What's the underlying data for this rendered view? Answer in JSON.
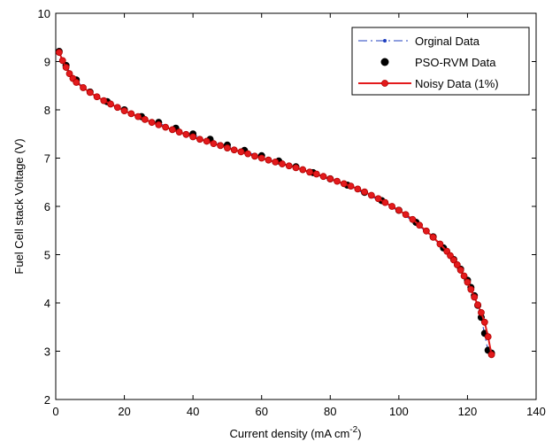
{
  "chart_data": {
    "type": "line",
    "xlabel": "Current density (mA cm",
    "xlabel_sup": "-2",
    "xlabel_close": ")",
    "ylabel": "Fuel Cell stack Voltage (V)",
    "xlim": [
      0,
      140
    ],
    "ylim": [
      2,
      10
    ],
    "xticks": [
      "0",
      "20",
      "40",
      "60",
      "80",
      "100",
      "120",
      "140"
    ],
    "yticks": [
      "2",
      "3",
      "4",
      "5",
      "6",
      "7",
      "8",
      "9",
      "10"
    ],
    "grid": false,
    "legend_position": "top-right",
    "series": [
      {
        "name": "Orginal Data",
        "color": "#1f3fbf",
        "style": "dash-dot-marker",
        "x": [
          1,
          3,
          6,
          10,
          15,
          20,
          25,
          30,
          35,
          40,
          45,
          50,
          55,
          60,
          65,
          70,
          75,
          80,
          85,
          90,
          95,
          100,
          105,
          110,
          113,
          116,
          118,
          120,
          121,
          122,
          123,
          124,
          125,
          126,
          127
        ],
        "y": [
          9.2,
          8.9,
          8.6,
          8.35,
          8.15,
          7.98,
          7.84,
          7.72,
          7.6,
          7.48,
          7.37,
          7.25,
          7.14,
          7.03,
          6.92,
          6.8,
          6.68,
          6.55,
          6.42,
          6.27,
          6.1,
          5.9,
          5.65,
          5.35,
          5.12,
          4.88,
          4.68,
          4.45,
          4.3,
          4.13,
          3.93,
          3.68,
          3.35,
          3.0,
          2.95
        ]
      },
      {
        "name": "PSO-RVM Data",
        "color": "#000000",
        "style": "marker",
        "x": [
          1,
          3,
          6,
          10,
          15,
          20,
          25,
          30,
          35,
          40,
          45,
          50,
          55,
          60,
          65,
          70,
          75,
          80,
          85,
          90,
          95,
          100,
          105,
          110,
          113,
          116,
          118,
          120,
          121,
          122,
          123,
          124,
          125,
          126,
          127
        ],
        "y": [
          9.21,
          8.92,
          8.62,
          8.37,
          8.17,
          8.0,
          7.86,
          7.74,
          7.62,
          7.5,
          7.39,
          7.27,
          7.16,
          7.05,
          6.94,
          6.82,
          6.7,
          6.57,
          6.44,
          6.29,
          6.12,
          5.92,
          5.67,
          5.37,
          5.14,
          4.9,
          4.7,
          4.47,
          4.32,
          4.15,
          3.95,
          3.7,
          3.37,
          3.02,
          2.96
        ]
      },
      {
        "name": "Noisy Data (1%)",
        "color": "#e31a1c",
        "style": "line-marker",
        "x": [
          1,
          2,
          3,
          4,
          5,
          6,
          8,
          10,
          12,
          14,
          16,
          18,
          20,
          22,
          24,
          26,
          28,
          30,
          32,
          34,
          36,
          38,
          40,
          42,
          44,
          46,
          48,
          50,
          52,
          54,
          56,
          58,
          60,
          62,
          64,
          66,
          68,
          70,
          72,
          74,
          76,
          78,
          80,
          82,
          84,
          86,
          88,
          90,
          92,
          94,
          96,
          98,
          100,
          102,
          104,
          106,
          108,
          110,
          112,
          114,
          115,
          116,
          117,
          118,
          119,
          120,
          121,
          122,
          123,
          124,
          125,
          126,
          127
        ],
        "y": [
          9.19,
          9.02,
          8.88,
          8.75,
          8.65,
          8.57,
          8.46,
          8.36,
          8.27,
          8.19,
          8.12,
          8.05,
          7.98,
          7.92,
          7.86,
          7.8,
          7.74,
          7.69,
          7.64,
          7.59,
          7.54,
          7.49,
          7.44,
          7.39,
          7.35,
          7.3,
          7.26,
          7.21,
          7.17,
          7.13,
          7.09,
          7.04,
          7.0,
          6.96,
          6.92,
          6.88,
          6.84,
          6.8,
          6.76,
          6.71,
          6.67,
          6.62,
          6.57,
          6.52,
          6.47,
          6.42,
          6.36,
          6.3,
          6.23,
          6.16,
          6.08,
          6.0,
          5.92,
          5.83,
          5.73,
          5.61,
          5.49,
          5.36,
          5.22,
          5.07,
          4.98,
          4.89,
          4.79,
          4.68,
          4.56,
          4.43,
          4.28,
          4.12,
          3.96,
          3.8,
          3.6,
          3.3,
          2.93
        ]
      }
    ]
  }
}
